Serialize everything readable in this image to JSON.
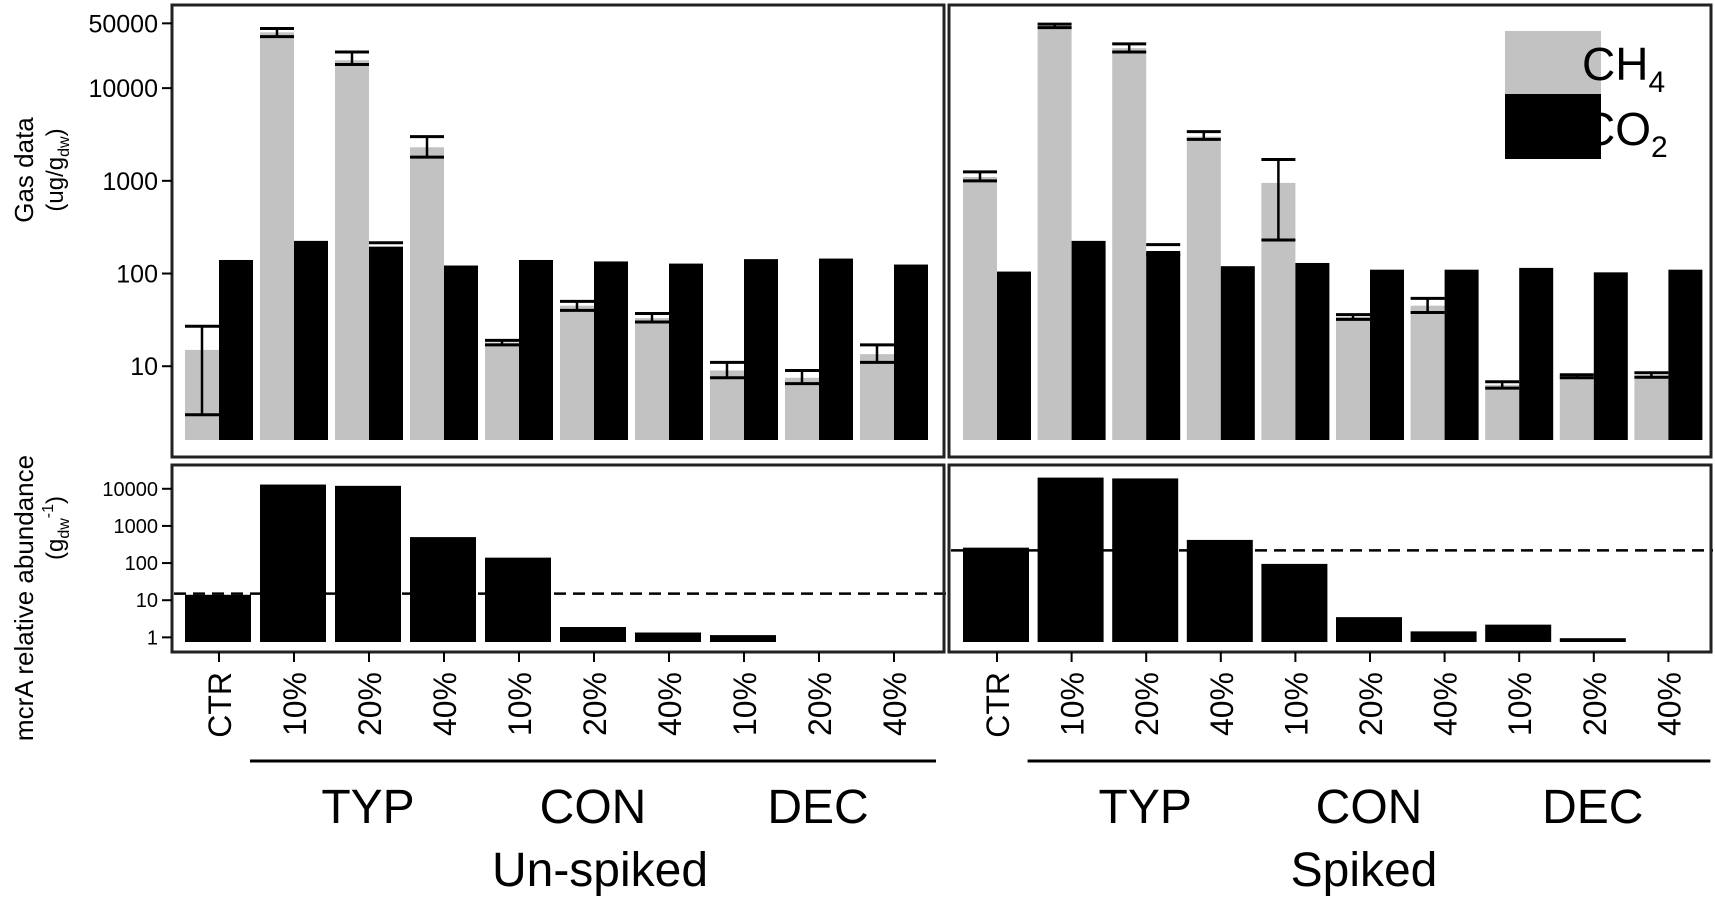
{
  "chart_data": {
    "type": "bar",
    "scale": "log",
    "colors": {
      "ch4": "#c2c2c2",
      "co2": "#000000",
      "mcra": "#000000"
    },
    "categories": [
      "CTR",
      "10%",
      "20%",
      "40%",
      "10%",
      "20%",
      "40%",
      "10%",
      "20%",
      "40%"
    ],
    "groups": [
      {
        "label": "TYP",
        "members": [
          1,
          2,
          3
        ]
      },
      {
        "label": "CON",
        "members": [
          4,
          5,
          6
        ]
      },
      {
        "label": "DEC",
        "members": [
          7,
          8,
          9
        ]
      }
    ],
    "legend": {
      "position": "top-right",
      "ch4_label": "CH",
      "ch4_sub": "4",
      "co2_label": "CO",
      "co2_sub": "2"
    },
    "gas_ylabel": {
      "line1": "Gas data",
      "line2_main": "(ug/g",
      "line2_sub": "dw",
      "line2_end": ")"
    },
    "gas_ylim": [
      1.6,
      60000
    ],
    "gas_ticks": [
      {
        "value": 10,
        "label": "10"
      },
      {
        "value": 100,
        "label": "100"
      },
      {
        "value": 1000,
        "label": "1000"
      },
      {
        "value": 10000,
        "label": "10000"
      },
      {
        "value": 50000,
        "label": "50000"
      }
    ],
    "mcra_ylabel": {
      "line1": "mcrA relative abundance",
      "line2_main": "(g",
      "line2_sub": "dw",
      "line2_sup": "-1",
      "line2_end": ")"
    },
    "mcra_ylim": [
      0.75,
      25000
    ],
    "mcra_ticks": [
      {
        "value": 1,
        "label": "1"
      },
      {
        "value": 10,
        "label": "10"
      },
      {
        "value": 100,
        "label": "100"
      },
      {
        "value": 1000,
        "label": "1000"
      },
      {
        "value": 10000,
        "label": "10000"
      }
    ],
    "panels": [
      {
        "title": "Un-spiked",
        "ch4": [
          15,
          40000,
          20000,
          2300,
          18,
          45,
          33,
          9,
          7.5,
          13.5
        ],
        "ch4_err": [
          [
            3,
            27
          ],
          [
            36000,
            44000
          ],
          [
            18000,
            24500
          ],
          [
            1800,
            3000
          ],
          [
            17,
            19
          ],
          [
            40,
            50
          ],
          [
            30,
            37
          ],
          [
            7.5,
            11
          ],
          [
            6.5,
            9
          ],
          [
            11,
            17
          ]
        ],
        "co2": [
          140,
          225,
          195,
          122,
          140,
          135,
          128,
          143,
          145,
          125
        ],
        "co2_err": [
          null,
          null,
          [
            180,
            215
          ],
          null,
          null,
          null,
          null,
          null,
          null,
          null
        ],
        "mcra": [
          14,
          13000,
          12000,
          500,
          140,
          1.9,
          1.35,
          1.15,
          null,
          null
        ],
        "mcra_threshold": 15
      },
      {
        "title": "Spiked",
        "ch4": [
          1100,
          47000,
          27000,
          3000,
          950,
          34,
          45,
          6.3,
          7.8,
          8
        ],
        "ch4_err": [
          [
            1000,
            1250
          ],
          [
            45000,
            49000
          ],
          [
            24500,
            30000
          ],
          [
            2800,
            3400
          ],
          [
            230,
            1700
          ],
          [
            32,
            36
          ],
          [
            38,
            54
          ],
          [
            5.8,
            6.8
          ],
          [
            7.5,
            8.1
          ],
          [
            7.6,
            8.5
          ]
        ],
        "co2": [
          105,
          225,
          175,
          120,
          130,
          110,
          110,
          115,
          103,
          110
        ],
        "co2_err": [
          null,
          null,
          [
            160,
            205
          ],
          null,
          null,
          null,
          null,
          null,
          null,
          null
        ],
        "mcra": [
          260,
          20000,
          19000,
          420,
          95,
          3.5,
          1.45,
          2.2,
          0.95,
          null
        ],
        "mcra_threshold": 220
      }
    ]
  }
}
